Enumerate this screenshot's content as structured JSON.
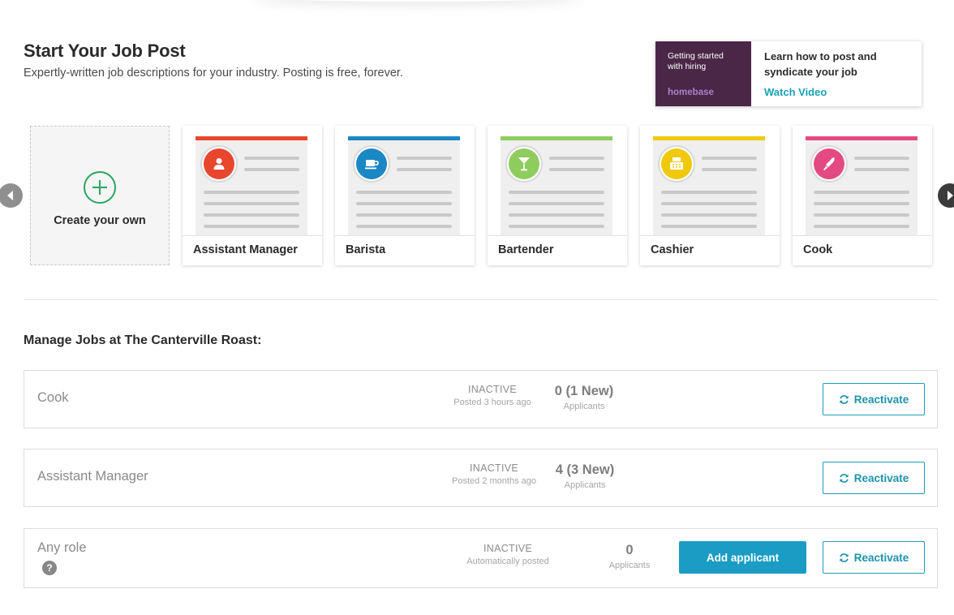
{
  "header": {
    "title": "Start Your Job Post",
    "subtitle": "Expertly-written job descriptions for your industry. Posting is free, forever."
  },
  "video_card": {
    "thumb_text": "Getting started with hiring",
    "brand": "homebase",
    "description": "Learn how to post and syndicate your job",
    "link_label": "Watch Video"
  },
  "templates": {
    "create_label": "Create your own",
    "items": [
      {
        "label": "Assistant Manager",
        "color": "#e8472d",
        "icon": "person-icon"
      },
      {
        "label": "Barista",
        "color": "#1b87c4",
        "icon": "coffee-cup-icon"
      },
      {
        "label": "Bartender",
        "color": "#8fcc5e",
        "icon": "cocktail-icon"
      },
      {
        "label": "Cashier",
        "color": "#f0c90a",
        "icon": "cash-register-icon"
      },
      {
        "label": "Cook",
        "color": "#e44a82",
        "icon": "knife-icon"
      }
    ]
  },
  "manage": {
    "title": "Manage Jobs at The Canterville Roast:",
    "jobs": [
      {
        "name": "Cook",
        "status": "INACTIVE",
        "posted": "Posted 3 hours ago",
        "count": "0 (1 New)",
        "applicants_label": "Applicants",
        "reactivate_label": "Reactivate"
      },
      {
        "name": "Assistant Manager",
        "status": "INACTIVE",
        "posted": "Posted 2 months ago",
        "count": "4 (3 New)",
        "applicants_label": "Applicants",
        "reactivate_label": "Reactivate"
      },
      {
        "name": "Any role",
        "status": "INACTIVE",
        "posted": "Automatically posted",
        "count": "0",
        "applicants_label": "Applicants",
        "add_label": "Add applicant",
        "reactivate_label": "Reactivate",
        "help": "?"
      }
    ]
  },
  "colors": {
    "accent": "#1b9cc4",
    "create_green": "#2aa462",
    "brand_purple": "#4b2747"
  }
}
